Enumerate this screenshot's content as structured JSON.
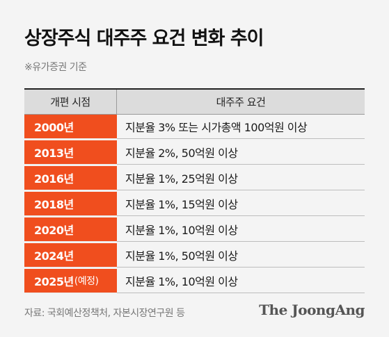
{
  "title": "상장주식 대주주 요건 변화 추이",
  "note": "※유가증권 기준",
  "table": {
    "headers": [
      "개편 시점",
      "대주주 요건"
    ],
    "rows": [
      {
        "year": "2000년",
        "year_suffix": "",
        "requirement": "지분율 3% 또는 시가총액 100억원  이상"
      },
      {
        "year": "2013년",
        "year_suffix": "",
        "requirement": "지분율 2%, 50억원 이상"
      },
      {
        "year": "2016년",
        "year_suffix": "",
        "requirement": "지분율 1%, 25억원 이상"
      },
      {
        "year": "2018년",
        "year_suffix": "",
        "requirement": "지분율 1%, 15억원 이상"
      },
      {
        "year": "2020년",
        "year_suffix": "",
        "requirement": "지분율 1%, 10억원 이상"
      },
      {
        "year": "2024년",
        "year_suffix": "",
        "requirement": "지분율 1%, 50억원 이상"
      },
      {
        "year": "2025년",
        "year_suffix": "(예정)",
        "requirement": "지분율 1%, 10억원 이상"
      }
    ]
  },
  "source": "자료: 국회예산정책처, 자본시장연구원 등",
  "brand": "The JoongAng",
  "colors": {
    "accent": "#f04e1e",
    "background": "#f4f4f4",
    "header_bg": "#dcdcdc"
  }
}
